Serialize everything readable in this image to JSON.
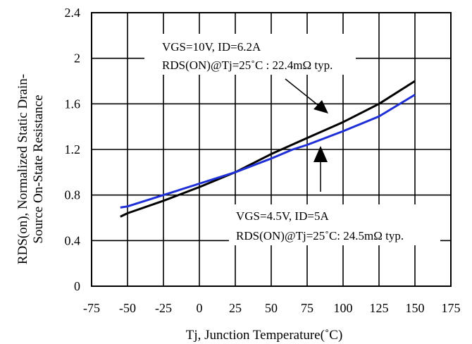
{
  "chart_data": {
    "type": "line",
    "xlabel": "Tj, Junction Temperature(˚C)",
    "ylabel_line1": "RDS(on), Normalized Static Drain-",
    "ylabel_line2": "Source On-State Resistance",
    "xlim": [
      -75,
      175
    ],
    "ylim": [
      0,
      2.4
    ],
    "x_ticks": [
      "-75",
      "-50",
      "-25",
      "0",
      "25",
      "50",
      "75",
      "100",
      "125",
      "150",
      "175"
    ],
    "y_ticks": [
      "0",
      "0.4",
      "0.8",
      "1.2",
      "1.6",
      "2",
      "2.4"
    ],
    "grid": true,
    "series": [
      {
        "color": "#000000",
        "x": [
          -55,
          -50,
          -25,
          0,
          25,
          50,
          75,
          100,
          125,
          150
        ],
        "y": [
          0.61,
          0.64,
          0.75,
          0.87,
          1.0,
          1.16,
          1.3,
          1.44,
          1.6,
          1.8
        ]
      },
      {
        "color": "#1f2fd6",
        "x": [
          -55,
          -50,
          -25,
          0,
          25,
          50,
          65,
          75,
          100,
          125,
          150
        ],
        "y": [
          0.69,
          0.7,
          0.8,
          0.9,
          1.0,
          1.12,
          1.2,
          1.24,
          1.36,
          1.49,
          1.68
        ]
      }
    ],
    "annotations": [
      {
        "line1": "VGS=10V, ID=6.2A",
        "line2": "RDS(ON)@Tj=25˚C : 22.4mΩ  typ."
      },
      {
        "line1": "VGS=4.5V, ID=5A",
        "line2": "RDS(ON)@Tj=25˚C: 24.5mΩ  typ."
      }
    ]
  }
}
